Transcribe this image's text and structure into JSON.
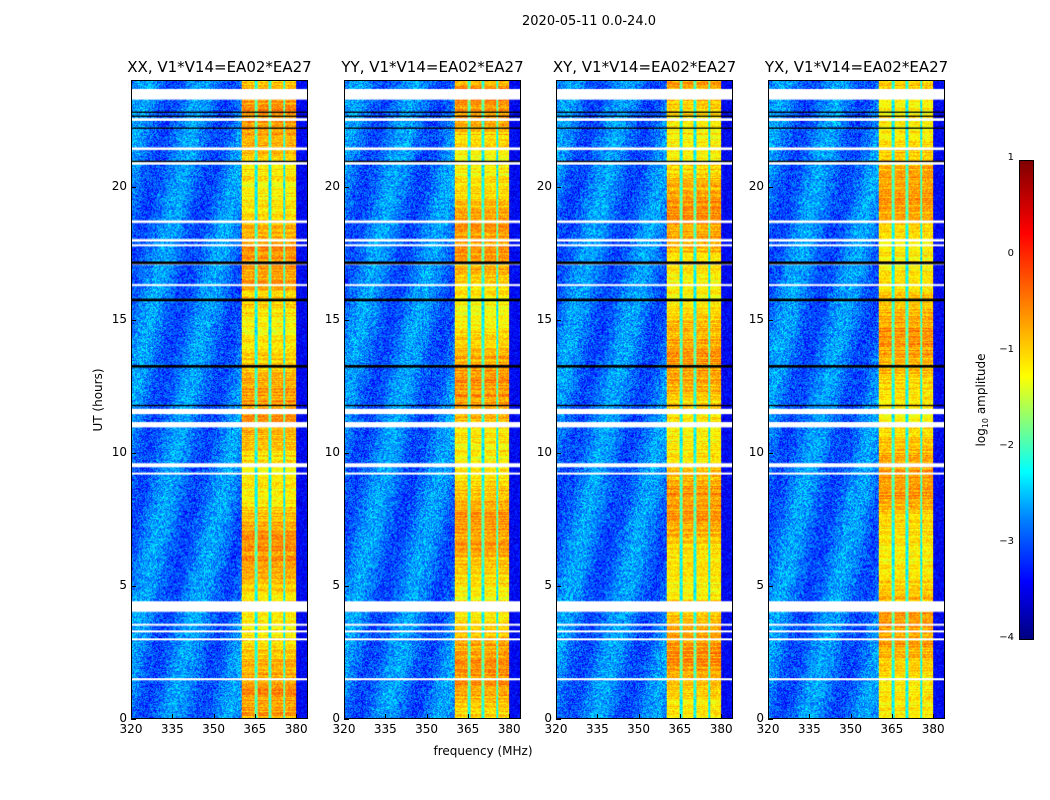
{
  "suptitle": "2020-05-11 0.0-24.0",
  "chart_data": {
    "type": "heatmap",
    "panels": [
      {
        "title": "XX, V1*V14=EA02*EA27"
      },
      {
        "title": "YY, V1*V14=EA02*EA27"
      },
      {
        "title": "XY, V1*V14=EA02*EA27"
      },
      {
        "title": "YX, V1*V14=EA02*EA27"
      }
    ],
    "xlabel": "frequency (MHz)",
    "ylabel": "UT (hours)",
    "xlim": [
      320,
      384.3
    ],
    "ylim": [
      0,
      24
    ],
    "xticks": [
      "320",
      "335",
      "350",
      "365",
      "380"
    ],
    "xtick_values": [
      320,
      335,
      350,
      365,
      380
    ],
    "yticks": [
      "0",
      "5",
      "10",
      "15",
      "20"
    ],
    "ytick_values": [
      0,
      5,
      10,
      15,
      20
    ],
    "colorbar": {
      "label": "log10 amplitude",
      "label_base": "log",
      "label_sub": "10",
      "label_rest": " amplitude",
      "range": [
        -4,
        1
      ],
      "ticks": [
        "1",
        "0",
        "−1",
        "−2",
        "−3",
        "−4"
      ],
      "tick_values": [
        1,
        0,
        -1,
        -2,
        -3,
        -4
      ],
      "colormap": "jet"
    },
    "bright_band_mhz": [
      360.3,
      380.3
    ],
    "band_gap_mhz": [
      365.3,
      370.4,
      375.8
    ],
    "flagged_hours_white": [
      [
        23.3,
        23.7
      ],
      [
        22.5,
        22.6
      ],
      [
        21.4,
        21.5
      ],
      [
        20.85,
        20.95
      ],
      [
        18.65,
        18.75
      ],
      [
        17.95,
        18.05
      ],
      [
        17.8,
        17.85
      ],
      [
        17.1,
        17.15
      ],
      [
        16.3,
        16.35
      ],
      [
        11.45,
        11.65
      ],
      [
        10.95,
        11.15
      ],
      [
        9.45,
        9.6
      ],
      [
        9.2,
        9.25
      ],
      [
        4.0,
        4.4
      ],
      [
        3.5,
        3.55
      ],
      [
        3.25,
        3.3
      ],
      [
        2.95,
        3.0
      ],
      [
        1.42,
        1.5
      ]
    ],
    "flagged_hours_black": [
      [
        22.8,
        22.85
      ],
      [
        22.65,
        22.7
      ],
      [
        22.2,
        22.25
      ],
      [
        20.95,
        21.0
      ],
      [
        17.1,
        17.2
      ],
      [
        15.7,
        15.8
      ],
      [
        13.2,
        13.3
      ],
      [
        11.75,
        11.8
      ]
    ],
    "background_level": -2.8,
    "band_level": -0.8
  }
}
